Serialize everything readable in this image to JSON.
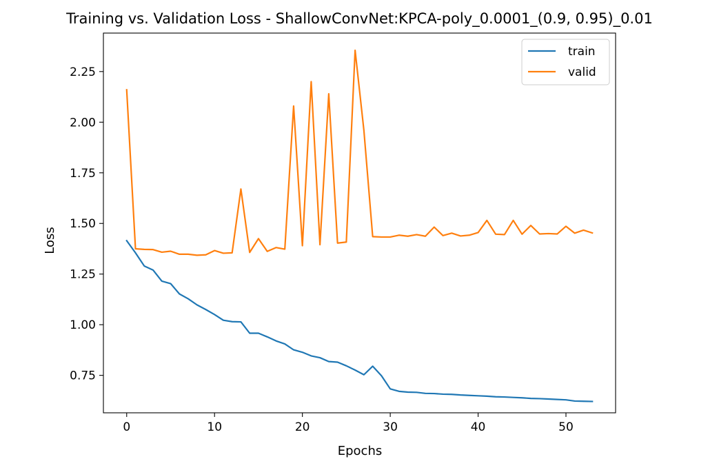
{
  "chart_data": {
    "type": "line",
    "title": "Training vs. Validation Loss - ShallowConvNet:KPCA-poly_0.0001_(0.9, 0.95)_0.01",
    "xlabel": "Epochs",
    "ylabel": "Loss",
    "xlim": [
      -2.65,
      55.65
    ],
    "ylim": [
      0.565,
      2.44
    ],
    "xticks": [
      0,
      10,
      20,
      30,
      40,
      50
    ],
    "xtick_labels": [
      "0",
      "10",
      "20",
      "30",
      "40",
      "50"
    ],
    "yticks": [
      0.75,
      1.0,
      1.25,
      1.5,
      1.75,
      2.0,
      2.25
    ],
    "ytick_labels": [
      "0.75",
      "1.00",
      "1.25",
      "1.50",
      "1.75",
      "2.00",
      "2.25"
    ],
    "grid": false,
    "legend_position": "top-right",
    "x": [
      0,
      1,
      2,
      3,
      4,
      5,
      6,
      7,
      8,
      9,
      10,
      11,
      12,
      13,
      14,
      15,
      16,
      17,
      18,
      19,
      20,
      21,
      22,
      23,
      24,
      25,
      26,
      27,
      28,
      29,
      30,
      31,
      32,
      33,
      34,
      35,
      36,
      37,
      38,
      39,
      40,
      41,
      42,
      43,
      44,
      45,
      46,
      47,
      48,
      49,
      50,
      51,
      52,
      53
    ],
    "series": [
      {
        "name": "train",
        "color": "#1f77b4",
        "values": [
          1.415,
          1.355,
          1.29,
          1.27,
          1.215,
          1.203,
          1.152,
          1.128,
          1.098,
          1.075,
          1.05,
          1.022,
          1.015,
          1.014,
          0.958,
          0.958,
          0.94,
          0.92,
          0.905,
          0.876,
          0.864,
          0.846,
          0.837,
          0.818,
          0.815,
          0.797,
          0.776,
          0.753,
          0.795,
          0.748,
          0.683,
          0.671,
          0.667,
          0.666,
          0.661,
          0.66,
          0.657,
          0.656,
          0.653,
          0.651,
          0.649,
          0.647,
          0.644,
          0.643,
          0.641,
          0.639,
          0.636,
          0.635,
          0.633,
          0.631,
          0.629,
          0.623,
          0.622,
          0.621
        ]
      },
      {
        "name": "valid",
        "color": "#ff7f0e",
        "values": [
          2.16,
          1.375,
          1.372,
          1.371,
          1.358,
          1.363,
          1.348,
          1.348,
          1.343,
          1.345,
          1.366,
          1.353,
          1.355,
          1.67,
          1.357,
          1.425,
          1.362,
          1.381,
          1.373,
          2.08,
          1.39,
          2.2,
          1.395,
          2.14,
          1.403,
          1.408,
          2.355,
          1.96,
          1.435,
          1.433,
          1.433,
          1.442,
          1.437,
          1.445,
          1.437,
          1.482,
          1.44,
          1.452,
          1.438,
          1.442,
          1.455,
          1.515,
          1.447,
          1.445,
          1.515,
          1.447,
          1.49,
          1.448,
          1.45,
          1.448,
          1.486,
          1.452,
          1.467,
          1.453
        ]
      }
    ]
  }
}
